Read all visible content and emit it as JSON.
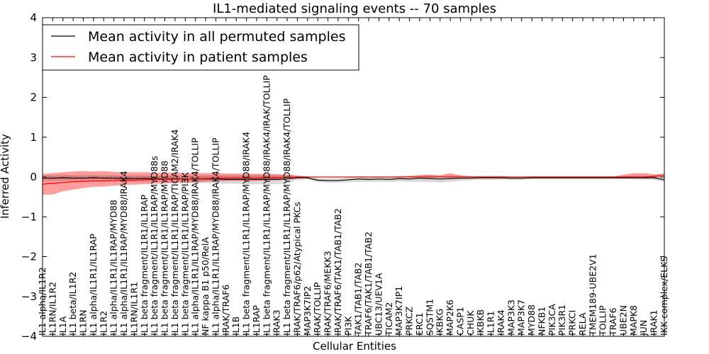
{
  "chart_data": {
    "type": "line",
    "title": "IL1-mediated signaling events -- 70 samples",
    "xlabel": "Cellular Entities",
    "ylabel": "Inferred Activity",
    "ylim": [
      -4,
      4
    ],
    "yticks": [
      4,
      3,
      2,
      1,
      0,
      -1,
      -2,
      -3,
      -4
    ],
    "ytick_labels": [
      "4",
      "3",
      "2",
      "1",
      "0",
      "−1",
      "−2",
      "−3",
      "−4"
    ],
    "legend": {
      "placement": "top-left",
      "entries": [
        {
          "label": "Mean activity in all permuted samples",
          "color": "#000000"
        },
        {
          "label": "Mean activity in patient samples",
          "color": "#ff0000"
        }
      ]
    },
    "categories": [
      "IL1 alpha/IL1R2",
      "IL1RN/IL1R2",
      "IL1A",
      "IL1 beta/IL1R2",
      "IL1RN",
      "IL1 alpha/IL1R1/IL1RAP",
      "IL1R2",
      "IL1 alpha/IL1R1/IL1RAP/MYD88",
      "IL1 alpha/IL1R1/IL1RAP/MYD88/IRAK4",
      "IL1RN/IL1R1",
      "IL1 beta fragment/IL1R1/IL1RAP",
      "IL1 beta fragment/IL1R1/IL1RAP/MYD88s",
      "IL1 beta fragment/IL1R1/IL1RAP/MYD88",
      "IL1 beta fragment/IL1R1/IL1RAP/TICAM2/IRAK4",
      "IL1 beta fragment/IL1R1/IL1RAP/PI3K",
      "IL1 alpha/IL1R1/IL1RAP/MYD88/IRAK4/TOLLIP",
      "NF kappa B1 p50/RelA",
      "IL1 alpha/IL1R1/IL1RAP/MYD88/IRAK4/TOLLIP",
      "IRAK/TRAF6",
      "IL1B",
      "IL1 beta fragment/IL1R1/IL1RAP/MYD88/IRAK4",
      "IL1RAP",
      "IL1 beta fragment/IL1R1/IL1RAP/MYD88/IRAK4/IRAK/TOLLIP",
      "IRAK3",
      "IL1 beta fragment/IL1R1/IL1RAP/MYD88/IRAK4/TOLLIP",
      "IRAK/TRAF6/p62/Atypical PKCs",
      "MAP3K7IP2",
      "IRAK/TOLLIP",
      "IRAK/TRAF6/MEKK3",
      "IRAK/TRAF6/TAK1/TAB1/TAB2",
      "PI3K",
      "TAK1/TAB1/TAB2",
      "TRAF6/TAK1/TAB1/TAB2",
      "UBC13/UEV1A",
      "TICAM2",
      "MAP3K7IP1",
      "PRKCZ",
      "ERC1",
      "SQSTM1",
      "IKBKG",
      "MAP2K6",
      "CASP1",
      "CHUK",
      "IKBKB",
      "IL1R1",
      "IRAK4",
      "MAP3K3",
      "MAP3K7",
      "MYD88",
      "NFKB1",
      "PIK3CA",
      "PIK3R1",
      "PRKCI",
      "RELA",
      "TMEM189-UBE2V1",
      "TOLLIP",
      "TRAF6",
      "UBE2N",
      "MAPK8",
      "JUN",
      "IRAK1",
      "IKK complex/ELKS"
    ],
    "series": [
      {
        "name": "Mean activity in all permuted samples",
        "color": "#000000",
        "values": [
          -0.03,
          -0.03,
          -0.02,
          -0.03,
          -0.03,
          -0.02,
          -0.03,
          -0.03,
          -0.04,
          -0.04,
          -0.04,
          -0.04,
          -0.05,
          -0.04,
          -0.05,
          -0.05,
          -0.05,
          -0.05,
          -0.06,
          -0.06,
          -0.06,
          -0.06,
          -0.06,
          -0.06,
          -0.05,
          -0.02,
          -0.02,
          -0.08,
          -0.09,
          -0.09,
          -0.07,
          -0.05,
          -0.06,
          -0.05,
          -0.06,
          -0.04,
          -0.05,
          -0.03,
          -0.04,
          -0.05,
          -0.04,
          -0.03,
          -0.03,
          -0.02,
          -0.02,
          -0.02,
          -0.03,
          -0.03,
          -0.02,
          -0.02,
          -0.02,
          -0.02,
          -0.02,
          -0.02,
          -0.02,
          -0.02,
          -0.02,
          -0.02,
          -0.02,
          -0.02,
          -0.02,
          -0.07
        ],
        "band_lower": [
          -0.11,
          -0.11,
          -0.1,
          -0.11,
          -0.11,
          -0.1,
          -0.11,
          -0.11,
          -0.12,
          -0.13,
          -0.13,
          -0.12,
          -0.14,
          -0.13,
          -0.15,
          -0.15,
          -0.15,
          -0.16,
          -0.17,
          -0.17,
          -0.18,
          -0.18,
          -0.18,
          -0.18,
          -0.16,
          -0.08,
          -0.06,
          -0.13,
          -0.14,
          -0.14,
          -0.13,
          -0.12,
          -0.13,
          -0.12,
          -0.13,
          -0.11,
          -0.12,
          -0.12,
          -0.13,
          -0.14,
          -0.12,
          -0.1,
          -0.08,
          -0.07,
          -0.07,
          -0.07,
          -0.07,
          -0.07,
          -0.06,
          -0.06,
          -0.06,
          -0.06,
          -0.06,
          -0.06,
          -0.06,
          -0.06,
          -0.06,
          -0.06,
          -0.06,
          -0.07,
          -0.07,
          -0.12
        ],
        "band_upper": [
          0.05,
          0.05,
          0.06,
          0.05,
          0.05,
          0.06,
          0.05,
          0.05,
          0.04,
          0.05,
          0.05,
          0.04,
          0.04,
          0.05,
          0.05,
          0.05,
          0.05,
          0.06,
          0.05,
          0.05,
          0.06,
          0.06,
          0.06,
          0.06,
          0.06,
          0.04,
          0.02,
          -0.03,
          -0.04,
          -0.04,
          -0.01,
          0.02,
          0.01,
          0.02,
          0.01,
          0.03,
          0.02,
          0.06,
          0.05,
          0.04,
          0.04,
          0.04,
          0.02,
          0.03,
          0.03,
          0.03,
          0.01,
          0.01,
          0.02,
          0.02,
          0.02,
          0.02,
          0.02,
          0.02,
          0.02,
          0.02,
          0.02,
          0.02,
          0.02,
          0.03,
          0.03,
          -0.02
        ]
      },
      {
        "name": "Mean activity in patient samples",
        "color": "#ff0000",
        "values": [
          -0.18,
          -0.16,
          -0.14,
          -0.12,
          -0.11,
          -0.1,
          -0.1,
          -0.09,
          -0.08,
          -0.08,
          -0.07,
          -0.06,
          -0.06,
          -0.05,
          -0.05,
          -0.04,
          -0.04,
          -0.03,
          -0.03,
          -0.03,
          -0.03,
          -0.03,
          -0.02,
          -0.02,
          -0.01,
          0,
          0,
          0,
          0,
          0,
          0,
          0,
          0,
          0,
          0,
          0,
          0,
          0,
          0,
          0,
          0,
          0,
          0,
          0,
          0,
          0,
          0,
          0,
          0,
          0,
          0,
          0,
          0,
          0,
          0,
          0,
          0,
          0,
          0,
          0,
          0.02,
          0.05
        ],
        "band_lower": [
          -0.45,
          -0.44,
          -0.36,
          -0.32,
          -0.28,
          -0.25,
          -0.24,
          -0.22,
          -0.2,
          -0.19,
          -0.18,
          -0.17,
          -0.16,
          -0.15,
          -0.14,
          -0.13,
          -0.12,
          -0.11,
          -0.1,
          -0.1,
          -0.1,
          -0.1,
          -0.09,
          -0.08,
          -0.06,
          -0.02,
          -0.01,
          -0.01,
          -0.01,
          -0.01,
          -0.01,
          -0.01,
          -0.01,
          -0.01,
          -0.01,
          -0.01,
          -0.01,
          -0.01,
          -0.01,
          -0.01,
          -0.01,
          -0.01,
          -0.01,
          -0.01,
          -0.01,
          -0.01,
          -0.01,
          -0.01,
          -0.01,
          -0.01,
          -0.01,
          -0.01,
          -0.01,
          -0.01,
          -0.01,
          -0.01,
          -0.01,
          -0.01,
          -0.02,
          -0.03,
          -0.02,
          0.02
        ],
        "band_upper": [
          0.08,
          0.1,
          0.12,
          0.14,
          0.15,
          0.14,
          0.15,
          0.13,
          0.12,
          0.12,
          0.12,
          0.11,
          0.11,
          0.11,
          0.1,
          0.1,
          0.1,
          0.1,
          0.09,
          0.09,
          0.08,
          0.08,
          0.08,
          0.07,
          0.06,
          0.03,
          0.01,
          0.01,
          0.01,
          0.01,
          0.01,
          0.01,
          0.01,
          0.01,
          0.01,
          0.01,
          0.03,
          0.04,
          0.06,
          0.04,
          0.1,
          0.04,
          0.02,
          0.01,
          0.01,
          0.01,
          0.01,
          0.01,
          0.01,
          0.01,
          0.01,
          0.01,
          0.01,
          0.01,
          0.01,
          0.01,
          0.01,
          0.06,
          0.1,
          0.1,
          0.07,
          0.08
        ]
      }
    ]
  }
}
